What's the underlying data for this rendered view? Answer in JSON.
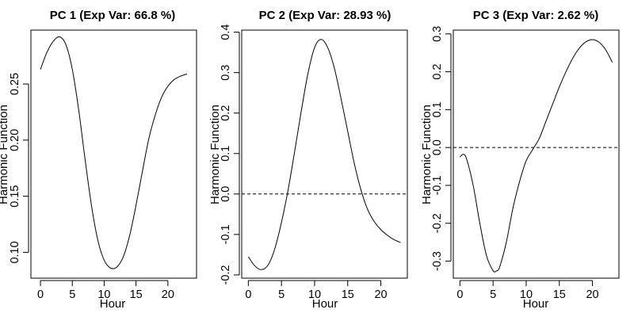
{
  "chart_data": [
    {
      "type": "line",
      "title": "PC 1 (Exp Var: 66.8 %)",
      "xlabel": "Hour",
      "ylabel": "Harmonic Function",
      "xlim": [
        -1.5,
        24.5
      ],
      "ylim": [
        0.077,
        0.298
      ],
      "xticks": [
        0,
        5,
        10,
        15,
        20
      ],
      "yticks": [
        0.1,
        0.15,
        0.2,
        0.25
      ],
      "ytick_labels": [
        "0.10",
        "0.15",
        "0.20",
        "0.25"
      ],
      "zero_line": false,
      "grid": false,
      "series": [
        {
          "x": [
            0,
            1,
            2,
            3,
            4,
            5,
            6,
            7,
            8,
            9,
            10,
            11,
            12,
            13,
            14,
            15,
            16,
            17,
            18,
            19,
            20,
            21,
            22,
            23
          ],
          "y": [
            0.263,
            0.278,
            0.288,
            0.292,
            0.285,
            0.263,
            0.227,
            0.183,
            0.142,
            0.111,
            0.093,
            0.086,
            0.087,
            0.096,
            0.115,
            0.142,
            0.172,
            0.201,
            0.222,
            0.238,
            0.248,
            0.254,
            0.257,
            0.259
          ]
        }
      ]
    },
    {
      "type": "line",
      "title": "PC 2 (Exp Var: 28.93 %)",
      "xlabel": "Hour",
      "ylabel": "Harmonic Function",
      "xlim": [
        -1,
        24
      ],
      "ylim": [
        -0.208,
        0.405
      ],
      "xticks": [
        0,
        5,
        10,
        15,
        20
      ],
      "yticks": [
        -0.2,
        -0.1,
        0.0,
        0.1,
        0.2,
        0.3,
        0.4
      ],
      "ytick_labels": [
        "-0.2",
        "-0.1",
        "0.0",
        "0.1",
        "0.2",
        "0.3",
        "0.4"
      ],
      "zero_line": true,
      "grid": false,
      "series": [
        {
          "x": [
            0,
            1,
            2,
            3,
            4,
            5,
            6,
            7,
            8,
            9,
            10,
            11,
            12,
            13,
            14,
            15,
            16,
            17,
            18,
            19,
            20,
            21,
            22,
            23
          ],
          "y": [
            -0.155,
            -0.178,
            -0.187,
            -0.175,
            -0.135,
            -0.07,
            0.01,
            0.106,
            0.206,
            0.298,
            0.362,
            0.382,
            0.361,
            0.31,
            0.235,
            0.155,
            0.075,
            0.01,
            -0.038,
            -0.068,
            -0.088,
            -0.102,
            -0.113,
            -0.12
          ]
        }
      ]
    },
    {
      "type": "line",
      "title": "PC 3 (Exp Var: 2.62 %)",
      "xlabel": "Hour",
      "ylabel": "Harmonic Function",
      "xlim": [
        -1,
        24
      ],
      "ylim": [
        -0.345,
        0.31
      ],
      "xticks": [
        0,
        5,
        10,
        15,
        20
      ],
      "yticks": [
        -0.3,
        -0.2,
        -0.1,
        0.0,
        0.1,
        0.2,
        0.3
      ],
      "ytick_labels": [
        "-0.3",
        "-0.2",
        "-0.1",
        "0.0",
        "0.1",
        "0.2",
        "0.3"
      ],
      "zero_line": true,
      "grid": false,
      "series": [
        {
          "x": [
            0,
            0.5,
            1,
            2,
            3,
            4,
            5,
            5.5,
            6,
            7,
            8,
            9,
            10,
            11,
            12,
            13,
            14,
            15,
            16,
            17,
            18,
            19,
            20,
            21,
            22,
            23
          ],
          "y": [
            -0.025,
            -0.018,
            -0.03,
            -0.1,
            -0.2,
            -0.285,
            -0.325,
            -0.326,
            -0.315,
            -0.25,
            -0.16,
            -0.09,
            -0.035,
            -0.005,
            0.025,
            0.07,
            0.115,
            0.16,
            0.2,
            0.235,
            0.262,
            0.279,
            0.285,
            0.278,
            0.258,
            0.225
          ]
        }
      ]
    }
  ]
}
